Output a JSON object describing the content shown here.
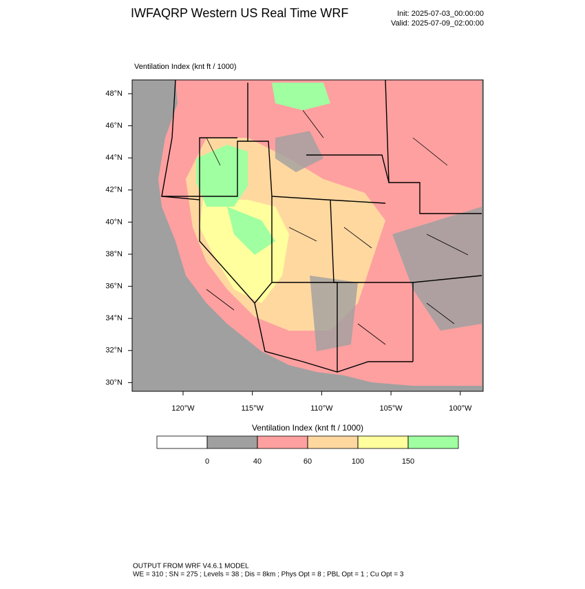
{
  "header": {
    "title": "IWFAQRP Western US Real Time WRF",
    "init": "Init: 2025-07-03_00:00:00",
    "valid": "Valid: 2025-07-09_02:00:00"
  },
  "map": {
    "label": "Ventilation Index   (knt ft / 1000)",
    "lat_labels": [
      "48°N",
      "46°N",
      "44°N",
      "42°N",
      "40°N",
      "38°N",
      "36°N",
      "34°N",
      "32°N",
      "30°N"
    ],
    "lon_labels": [
      "120°W",
      "115°W",
      "110°W",
      "105°W",
      "100°W"
    ]
  },
  "colorbar": {
    "title": "Ventilation Index   (knt ft / 1000)",
    "ticks": [
      0,
      40,
      60,
      100,
      150
    ],
    "colors": [
      "#ffffff",
      "#a0a0a0",
      "#ffa0a0",
      "#ffd8a0",
      "#ffff9e",
      "#a0ffa0"
    ]
  },
  "footer": {
    "line1": "OUTPUT FROM WRF V4.6.1 MODEL",
    "line2": "WE = 310 ; SN = 275 ; Levels = 38 ; Dis = 8km ; Phys Opt = 8 ; PBL Opt = 1 ; Cu Opt = 3"
  }
}
